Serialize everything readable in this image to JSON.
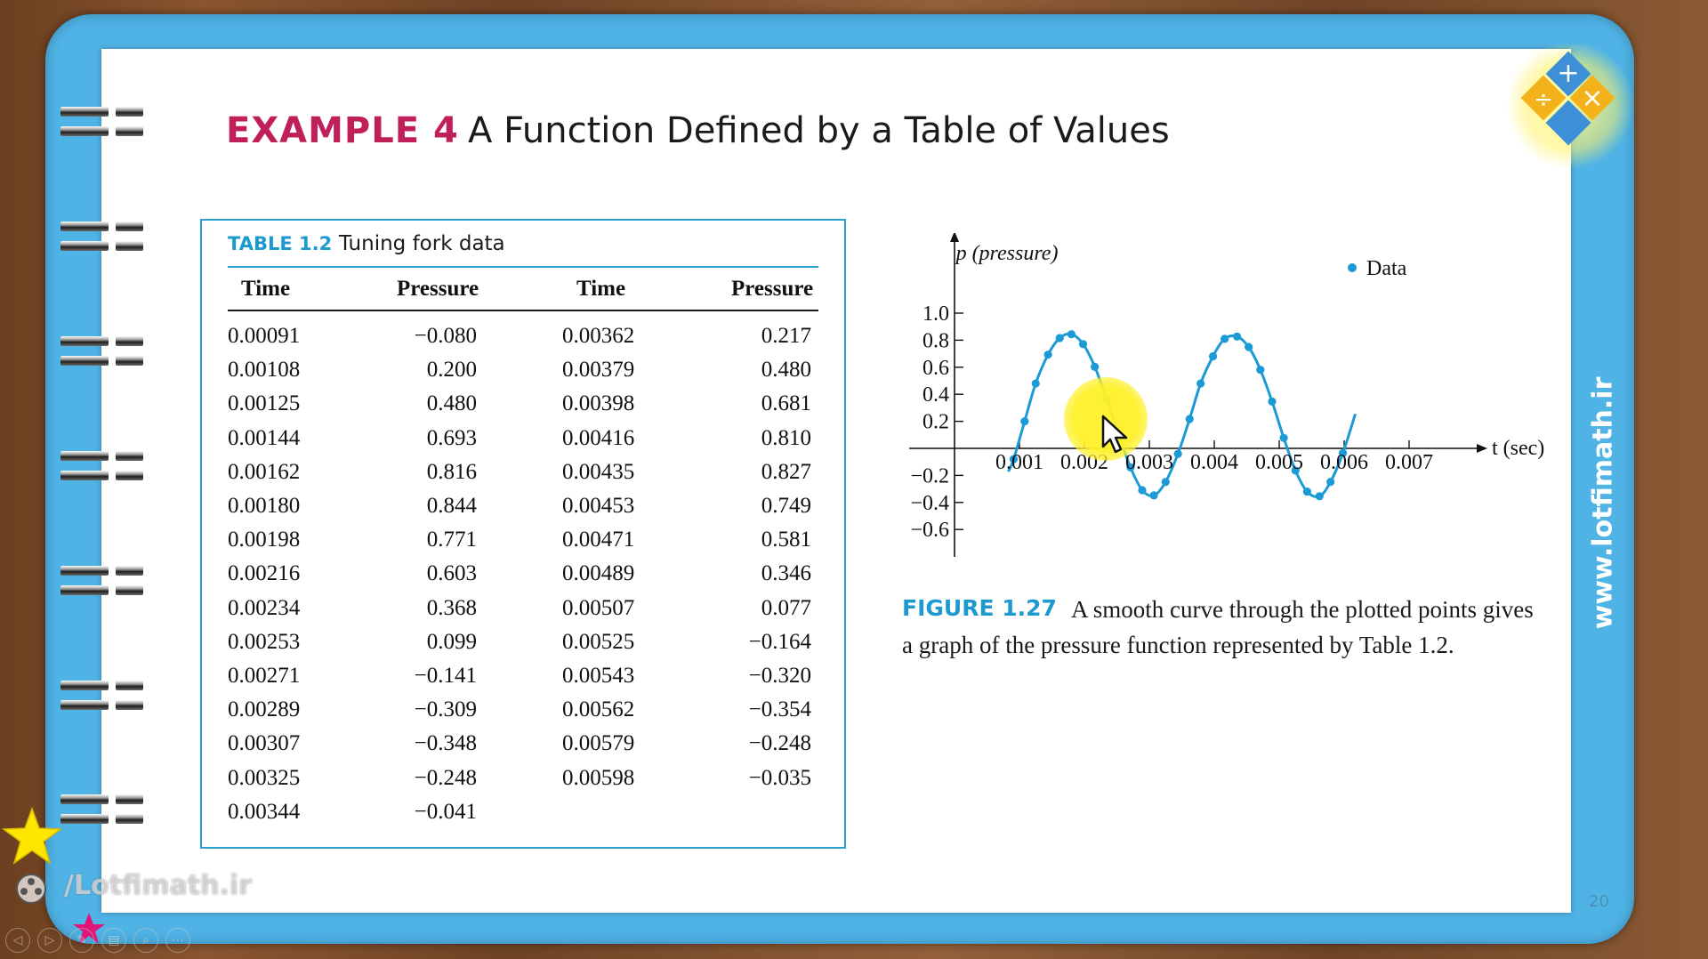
{
  "header": {
    "example_label": "EXAMPLE 4",
    "example_title": "A Function Defined by a Table of Values"
  },
  "table": {
    "label": "TABLE 1.2",
    "caption": "Tuning fork data",
    "headers": [
      "Time",
      "Pressure",
      "Time",
      "Pressure"
    ],
    "rows": [
      [
        "0.00091",
        "−0.080",
        "0.00362",
        "0.217"
      ],
      [
        "0.00108",
        "0.200",
        "0.00379",
        "0.480"
      ],
      [
        "0.00125",
        "0.480",
        "0.00398",
        "0.681"
      ],
      [
        "0.00144",
        "0.693",
        "0.00416",
        "0.810"
      ],
      [
        "0.00162",
        "0.816",
        "0.00435",
        "0.827"
      ],
      [
        "0.00180",
        "0.844",
        "0.00453",
        "0.749"
      ],
      [
        "0.00198",
        "0.771",
        "0.00471",
        "0.581"
      ],
      [
        "0.00216",
        "0.603",
        "0.00489",
        "0.346"
      ],
      [
        "0.00234",
        "0.368",
        "0.00507",
        "0.077"
      ],
      [
        "0.00253",
        "0.099",
        "0.00525",
        "−0.164"
      ],
      [
        "0.00271",
        "−0.141",
        "0.00543",
        "−0.320"
      ],
      [
        "0.00289",
        "−0.309",
        "0.00562",
        "−0.354"
      ],
      [
        "0.00307",
        "−0.348",
        "0.00579",
        "−0.248"
      ],
      [
        "0.00325",
        "−0.248",
        "0.00598",
        "−0.035"
      ],
      [
        "0.00344",
        "−0.041",
        "",
        ""
      ]
    ]
  },
  "chart_data": {
    "type": "scatter",
    "title": "",
    "xlabel": "t (sec)",
    "ylabel": "p (pressure)",
    "xlim": [
      0,
      0.0081
    ],
    "ylim": [
      -0.8,
      1.25
    ],
    "x_ticks": [
      0.001,
      0.002,
      0.003,
      0.004,
      0.005,
      0.006,
      0.007
    ],
    "x_tick_labels": [
      "0.001",
      "0.002",
      "0.003",
      "0.004",
      "0.005",
      "0.006",
      "0.007"
    ],
    "y_ticks": [
      -0.6,
      -0.4,
      -0.2,
      0.2,
      0.4,
      0.6,
      0.8,
      1.0
    ],
    "y_tick_labels": [
      "−0.6",
      "−0.4",
      "−0.2",
      "0.2",
      "0.4",
      "0.6",
      "0.8",
      "1.0"
    ],
    "legend": [
      "Data"
    ],
    "legend_position": "top-right",
    "smooth_curve": true,
    "series": [
      {
        "name": "Data",
        "color": "#1c9ad6",
        "points": [
          [
            0.00091,
            -0.08
          ],
          [
            0.00108,
            0.2
          ],
          [
            0.00125,
            0.48
          ],
          [
            0.00144,
            0.693
          ],
          [
            0.00162,
            0.816
          ],
          [
            0.0018,
            0.844
          ],
          [
            0.00198,
            0.771
          ],
          [
            0.00216,
            0.603
          ],
          [
            0.00234,
            0.368
          ],
          [
            0.00253,
            0.099
          ],
          [
            0.00271,
            -0.141
          ],
          [
            0.00289,
            -0.309
          ],
          [
            0.00307,
            -0.348
          ],
          [
            0.00325,
            -0.248
          ],
          [
            0.00344,
            -0.041
          ],
          [
            0.00362,
            0.217
          ],
          [
            0.00379,
            0.48
          ],
          [
            0.00398,
            0.681
          ],
          [
            0.00416,
            0.81
          ],
          [
            0.00435,
            0.827
          ],
          [
            0.00453,
            0.749
          ],
          [
            0.00471,
            0.581
          ],
          [
            0.00489,
            0.346
          ],
          [
            0.00507,
            0.077
          ],
          [
            0.00525,
            -0.164
          ],
          [
            0.00543,
            -0.32
          ],
          [
            0.00562,
            -0.354
          ],
          [
            0.00579,
            -0.248
          ],
          [
            0.00598,
            -0.035
          ]
        ]
      }
    ]
  },
  "figure": {
    "label": "FIGURE 1.27",
    "caption": "A smooth curve through the plotted points gives a graph of the pressure function represented by Table 1.2."
  },
  "side": {
    "url": "www.lotfimath.ir",
    "watermark": "/Lotfimath.ir",
    "page_number": "20"
  },
  "logo": {
    "symbols": [
      "+",
      "÷",
      "×"
    ]
  },
  "player": {
    "buttons": [
      "◁",
      "▷",
      "✎",
      "▤",
      "⌕",
      "⋯"
    ]
  }
}
